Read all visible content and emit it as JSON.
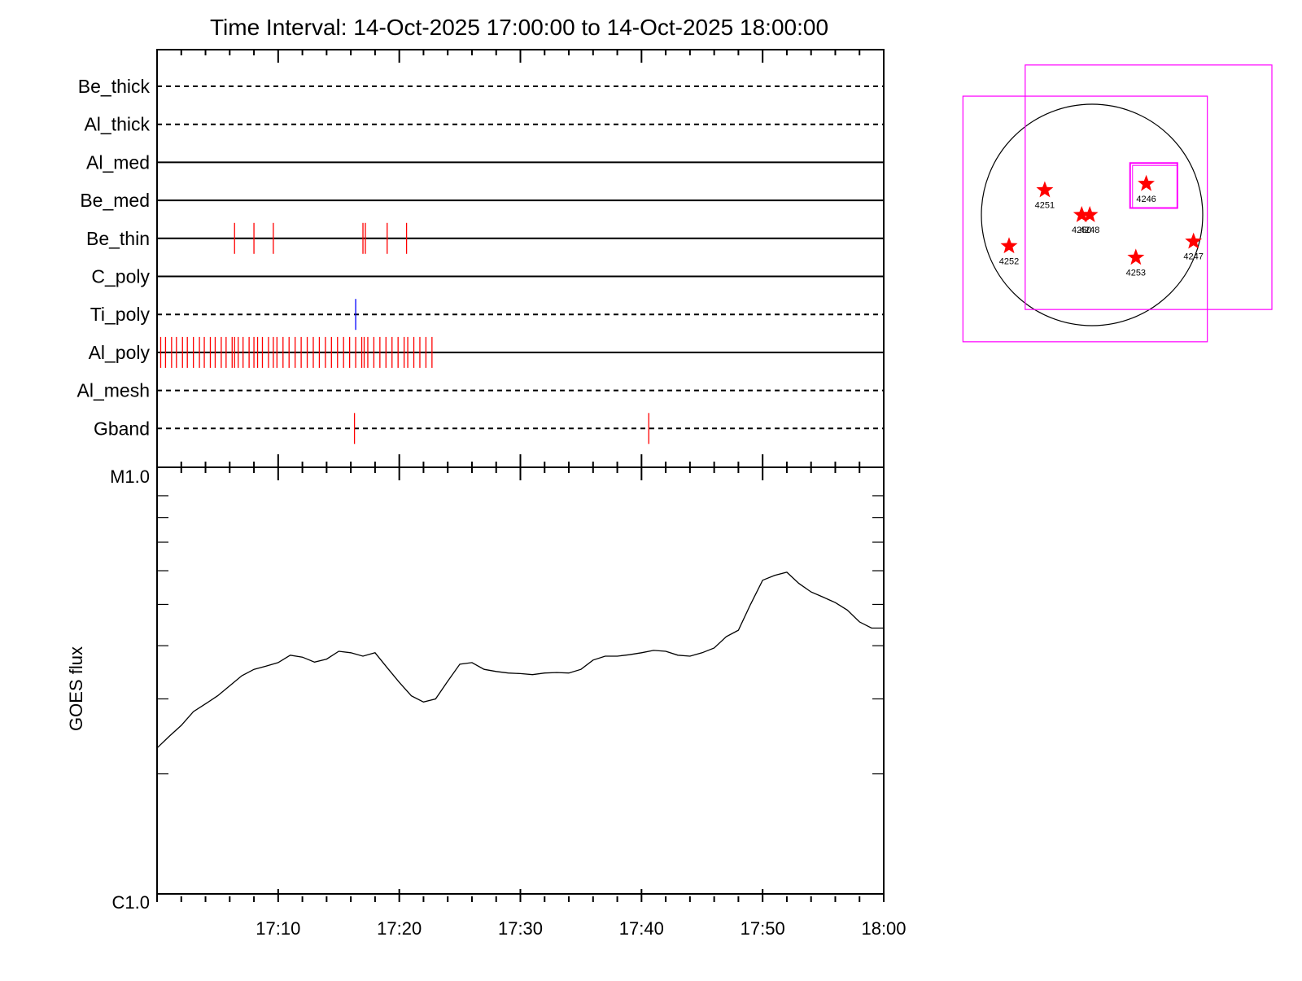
{
  "title": "Time Interval: 14-Oct-2025 17:00:00 to 14-Oct-2025 18:00:00",
  "colors": {
    "axis": "#000000",
    "red_event": "#ff0000",
    "blue_event": "#0000ff",
    "box": "#ff00ff",
    "star": "#ff0000"
  },
  "chart_data": [
    {
      "type": "timeline",
      "x_range_minutes": [
        0,
        60
      ],
      "x_start": "17:00",
      "x_end": "18:00",
      "channels": [
        {
          "name": "Be_thick",
          "line": "dashed",
          "events": []
        },
        {
          "name": "Al_thick",
          "line": "dashed",
          "events": []
        },
        {
          "name": "Al_med",
          "line": "solid",
          "events": []
        },
        {
          "name": "Be_med",
          "line": "solid",
          "events": []
        },
        {
          "name": "Be_thin",
          "line": "solid",
          "events": [
            {
              "t": 6.4,
              "color": "red"
            },
            {
              "t": 8.0,
              "color": "red"
            },
            {
              "t": 9.6,
              "color": "red"
            },
            {
              "t": 17.0,
              "color": "red"
            },
            {
              "t": 17.2,
              "color": "red"
            },
            {
              "t": 19.0,
              "color": "red"
            },
            {
              "t": 20.6,
              "color": "red"
            }
          ]
        },
        {
          "name": "C_poly",
          "line": "solid",
          "events": []
        },
        {
          "name": "Ti_poly",
          "line": "dashed",
          "events": [
            {
              "t": 16.4,
              "color": "blue"
            }
          ]
        },
        {
          "name": "Al_poly",
          "line": "solid",
          "events": [
            {
              "t": 0.3,
              "color": "red"
            },
            {
              "t": 0.7,
              "color": "red"
            },
            {
              "t": 1.2,
              "color": "red"
            },
            {
              "t": 1.6,
              "color": "red"
            },
            {
              "t": 2.1,
              "color": "red"
            },
            {
              "t": 2.5,
              "color": "red"
            },
            {
              "t": 3.0,
              "color": "red"
            },
            {
              "t": 3.5,
              "color": "red"
            },
            {
              "t": 3.9,
              "color": "red"
            },
            {
              "t": 4.4,
              "color": "red"
            },
            {
              "t": 4.8,
              "color": "red"
            },
            {
              "t": 5.3,
              "color": "red"
            },
            {
              "t": 5.7,
              "color": "red"
            },
            {
              "t": 6.2,
              "color": "red"
            },
            {
              "t": 6.4,
              "color": "red"
            },
            {
              "t": 6.7,
              "color": "red"
            },
            {
              "t": 7.1,
              "color": "red"
            },
            {
              "t": 7.6,
              "color": "red"
            },
            {
              "t": 8.0,
              "color": "red"
            },
            {
              "t": 8.3,
              "color": "red"
            },
            {
              "t": 8.7,
              "color": "red"
            },
            {
              "t": 9.2,
              "color": "red"
            },
            {
              "t": 9.6,
              "color": "red"
            },
            {
              "t": 9.9,
              "color": "red"
            },
            {
              "t": 10.4,
              "color": "red"
            },
            {
              "t": 10.9,
              "color": "red"
            },
            {
              "t": 11.4,
              "color": "red"
            },
            {
              "t": 11.9,
              "color": "red"
            },
            {
              "t": 12.4,
              "color": "red"
            },
            {
              "t": 12.9,
              "color": "red"
            },
            {
              "t": 13.4,
              "color": "red"
            },
            {
              "t": 13.9,
              "color": "red"
            },
            {
              "t": 14.4,
              "color": "red"
            },
            {
              "t": 14.9,
              "color": "red"
            },
            {
              "t": 15.4,
              "color": "red"
            },
            {
              "t": 15.9,
              "color": "red"
            },
            {
              "t": 16.4,
              "color": "red"
            },
            {
              "t": 16.9,
              "color": "red"
            },
            {
              "t": 17.1,
              "color": "red"
            },
            {
              "t": 17.4,
              "color": "red"
            },
            {
              "t": 17.9,
              "color": "red"
            },
            {
              "t": 18.4,
              "color": "red"
            },
            {
              "t": 18.9,
              "color": "red"
            },
            {
              "t": 19.4,
              "color": "red"
            },
            {
              "t": 19.9,
              "color": "red"
            },
            {
              "t": 20.4,
              "color": "red"
            },
            {
              "t": 20.7,
              "color": "red"
            },
            {
              "t": 21.2,
              "color": "red"
            },
            {
              "t": 21.7,
              "color": "red"
            },
            {
              "t": 22.2,
              "color": "red"
            },
            {
              "t": 22.7,
              "color": "red"
            }
          ]
        },
        {
          "name": "Al_mesh",
          "line": "dashed",
          "events": []
        },
        {
          "name": "Gband",
          "line": "dashed",
          "events": [
            {
              "t": 16.3,
              "color": "red"
            },
            {
              "t": 40.6,
              "color": "red"
            }
          ]
        }
      ]
    },
    {
      "type": "line",
      "ylabel": "GOES flux",
      "y_scale": "log",
      "ylim_labels": [
        "C1.0",
        "M1.0"
      ],
      "ylim": [
        1e-06,
        1e-05
      ],
      "x_range_minutes": [
        0,
        60
      ],
      "x_tick_labels": [
        "17:10",
        "17:20",
        "17:30",
        "17:40",
        "17:50",
        "18:00"
      ],
      "x_tick_values": [
        10,
        20,
        30,
        40,
        50,
        60
      ],
      "series": [
        {
          "t": [
            0,
            1,
            2,
            3,
            4,
            5,
            6,
            7,
            8,
            9,
            10,
            11,
            12,
            13,
            14,
            15,
            16,
            17,
            18,
            19,
            20,
            21,
            22,
            23,
            24,
            25,
            26,
            27,
            28,
            29,
            30,
            31,
            32,
            33,
            34,
            35,
            36,
            37,
            38,
            39,
            40,
            41,
            42,
            43,
            44,
            45,
            46,
            47,
            48,
            49,
            50,
            51,
            52,
            53,
            54,
            55,
            56,
            57,
            58,
            59,
            60
          ],
          "values": [
            2.3e-06,
            2.45e-06,
            2.6e-06,
            2.8e-06,
            2.92e-06,
            3.05e-06,
            3.22e-06,
            3.4e-06,
            3.52e-06,
            3.58e-06,
            3.65e-06,
            3.8e-06,
            3.76e-06,
            3.66e-06,
            3.72e-06,
            3.88e-06,
            3.85e-06,
            3.78e-06,
            3.85e-06,
            3.55e-06,
            3.28e-06,
            3.05e-06,
            2.95e-06,
            3e-06,
            3.3e-06,
            3.62e-06,
            3.65e-06,
            3.52e-06,
            3.48e-06,
            3.45e-06,
            3.44e-06,
            3.42e-06,
            3.45e-06,
            3.46e-06,
            3.45e-06,
            3.52e-06,
            3.7e-06,
            3.78e-06,
            3.78e-06,
            3.81e-06,
            3.85e-06,
            3.9e-06,
            3.88e-06,
            3.8e-06,
            3.78e-06,
            3.85e-06,
            3.95e-06,
            4.2e-06,
            4.35e-06,
            5e-06,
            5.7e-06,
            5.85e-06,
            5.95e-06,
            5.6e-06,
            5.35e-06,
            5.2e-06,
            5.05e-06,
            4.85e-06,
            4.55e-06,
            4.4e-06,
            4.4e-06
          ]
        }
      ]
    },
    {
      "type": "scatter",
      "description_of_marks": "solar disk with active regions",
      "units": "arcsec",
      "sun_radius": 960,
      "active_regions": [
        {
          "label": "4246",
          "x": 470,
          "y": 270
        },
        {
          "label": "4251",
          "x": -410,
          "y": 215
        },
        {
          "label": "4250",
          "x": -90,
          "y": 0
        },
        {
          "label": "4248",
          "x": -20,
          "y": 0
        },
        {
          "label": "4252",
          "x": -720,
          "y": -270
        },
        {
          "label": "4253",
          "x": 380,
          "y": -370
        },
        {
          "label": "4247",
          "x": 880,
          "y": -230
        }
      ],
      "fov_boxes": [
        {
          "x0": -1120,
          "x1": 1000,
          "y0": -1100,
          "y1": 1030
        },
        {
          "x0": -580,
          "x1": 1560,
          "y0": -820,
          "y1": 1300
        },
        {
          "x0": 330,
          "x1": 740,
          "y0": 60,
          "y1": 450
        }
      ]
    }
  ]
}
